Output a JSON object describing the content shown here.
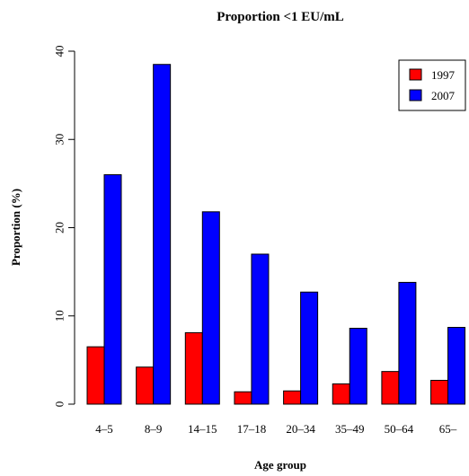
{
  "chart_data": {
    "type": "bar",
    "title": "Proportion <1 EU/mL",
    "xlabel": "Age group",
    "ylabel": "Proportion (%)",
    "ylim": [
      0,
      40
    ],
    "yticks": [
      0,
      10,
      20,
      30,
      40
    ],
    "categories": [
      "4–5",
      "8–9",
      "14–15",
      "17–18",
      "20–34",
      "35–49",
      "50–64",
      "65–"
    ],
    "series": [
      {
        "name": "1997",
        "color": "#ff0000",
        "values": [
          6.5,
          4.2,
          8.1,
          1.4,
          1.5,
          2.3,
          3.7,
          2.7
        ]
      },
      {
        "name": "2007",
        "color": "#0000ff",
        "values": [
          26.0,
          38.5,
          21.8,
          17.0,
          12.7,
          8.6,
          13.8,
          8.7
        ]
      }
    ],
    "legend": "top-right",
    "grid": false
  }
}
